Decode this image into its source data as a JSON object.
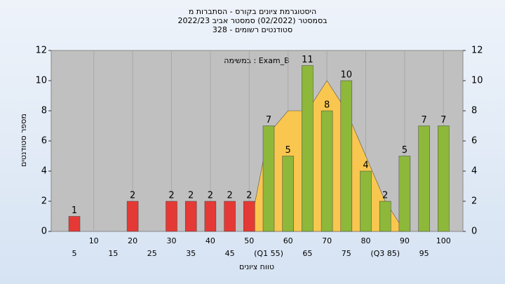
{
  "chart_data": {
    "type": "bar",
    "title": [
      "היסטוגרמת ציונים בקורס - הסתברות מ",
      "בסמסטר  (02/2022)  סמסטר אביב 2022/23",
      "סטודנטים רשומים - 328"
    ],
    "annotation": "במשימה : Exam_B",
    "x_label": "טווח ציונים",
    "y_label": "מספר סטודנטים",
    "categories": [
      "5",
      "10",
      "15",
      "20",
      "25",
      "30",
      "35",
      "40",
      "45",
      "50",
      "(Q1 55)",
      "60",
      "65",
      "70",
      "75",
      "80",
      "(Q3 85)",
      "90",
      "95",
      "100"
    ],
    "values": [
      1,
      0,
      0,
      2,
      0,
      2,
      2,
      2,
      2,
      2,
      7,
      5,
      11,
      8,
      10,
      4,
      2,
      5,
      7,
      7
    ],
    "colors": [
      "#e53935",
      "#e53935",
      "#e53935",
      "#e53935",
      "#e53935",
      "#e53935",
      "#e53935",
      "#e53935",
      "#e53935",
      "#e53935",
      "#8db83a",
      "#8db83a",
      "#8db83a",
      "#8db83a",
      "#8db83a",
      "#8db83a",
      "#8db83a",
      "#8db83a",
      "#8db83a",
      "#8db83a"
    ],
    "area": {
      "color": "#f9c74f",
      "values": [
        null,
        null,
        null,
        null,
        null,
        null,
        null,
        null,
        null,
        0,
        6.5,
        8,
        8,
        10,
        8,
        5,
        2,
        0,
        null,
        null
      ]
    },
    "ylim": [
      0,
      12
    ],
    "yticks": [
      0,
      2,
      4,
      6,
      8,
      10,
      12
    ],
    "grid": true
  }
}
